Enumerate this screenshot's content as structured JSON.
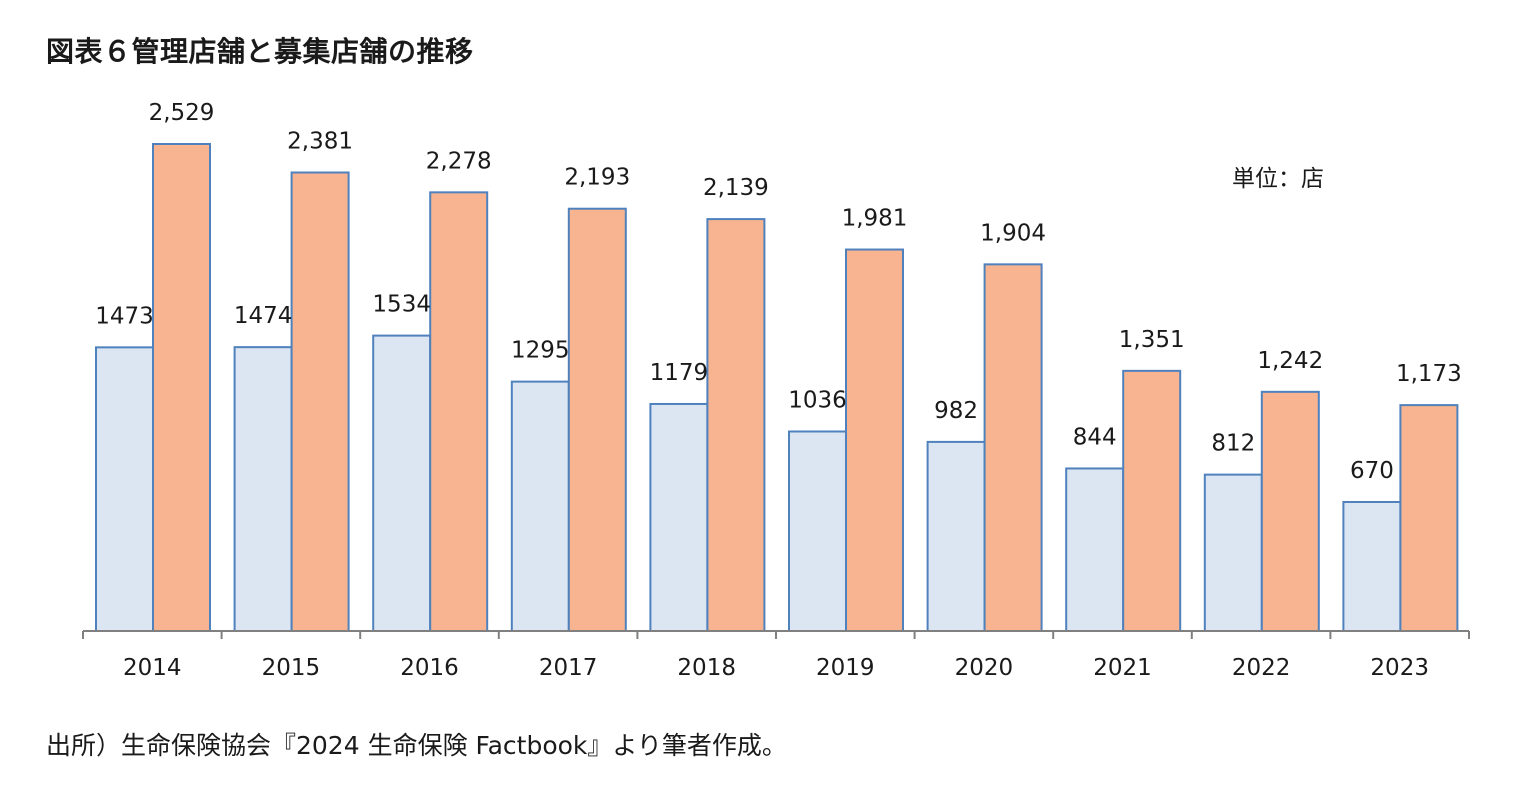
{
  "title": "図表６管理店舗と募集店舗の推移",
  "source": "出所）生命保険協会『2024 生命保険 Factbook』より筆者作成。",
  "chart_data": {
    "type": "bar",
    "unit_note": "単位：店",
    "categories": [
      "2014",
      "2015",
      "2016",
      "2017",
      "2018",
      "2019",
      "2020",
      "2021",
      "2022",
      "2023"
    ],
    "series": [
      {
        "values": [
          1473,
          1474,
          1534,
          1295,
          1179,
          1036,
          982,
          844,
          812,
          670
        ],
        "labels": [
          "1473",
          "1474",
          "1534",
          "1295",
          "1179",
          "1036",
          "982",
          "844",
          "812",
          "670"
        ],
        "color": "#dce6f2",
        "stroke": "#4f81bd"
      },
      {
        "values": [
          2529,
          2381,
          2278,
          2193,
          2139,
          1981,
          1904,
          1351,
          1242,
          1173
        ],
        "labels": [
          "2,529",
          "2,381",
          "2,278",
          "2,193",
          "2,139",
          "1,981",
          "1,904",
          "1,351",
          "1,242",
          "1,173"
        ],
        "color": "#f8b490",
        "stroke": "#4f81bd"
      }
    ],
    "ylim": [
      0,
      2529
    ],
    "grid": false,
    "legend": "none",
    "axis_color": "#808080",
    "label_color": "#1a1a1a"
  }
}
